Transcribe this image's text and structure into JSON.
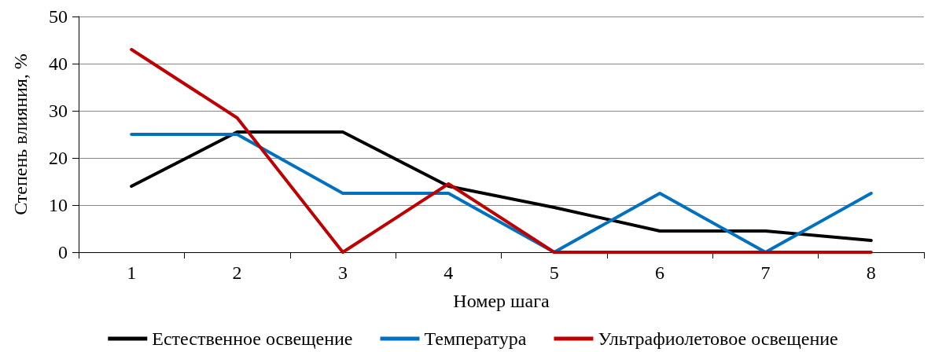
{
  "chart_data": {
    "type": "line",
    "xlabel": "Номер шага",
    "ylabel": "Степень влияния, %",
    "categories": [
      "1",
      "2",
      "3",
      "4",
      "5",
      "6",
      "7",
      "8"
    ],
    "series": [
      {
        "name": "Естественное освещение",
        "color": "#000000",
        "values": [
          14,
          25.5,
          25.5,
          14,
          9.5,
          4.5,
          4.5,
          2.5
        ]
      },
      {
        "name": "Температура",
        "color": "#0070c0",
        "values": [
          25,
          25,
          12.5,
          12.5,
          0,
          12.5,
          0,
          12.5
        ]
      },
      {
        "name": "Ультрафиолетовое освещение",
        "color": "#c00000",
        "values": [
          43,
          28.5,
          0,
          14.5,
          0,
          0,
          0,
          0
        ]
      }
    ],
    "ylim": [
      0,
      50
    ],
    "yticks": [
      0,
      10,
      20,
      30,
      40,
      50
    ],
    "grid": "y",
    "legend": "bottom",
    "marker": "none",
    "line_style": "solid"
  }
}
